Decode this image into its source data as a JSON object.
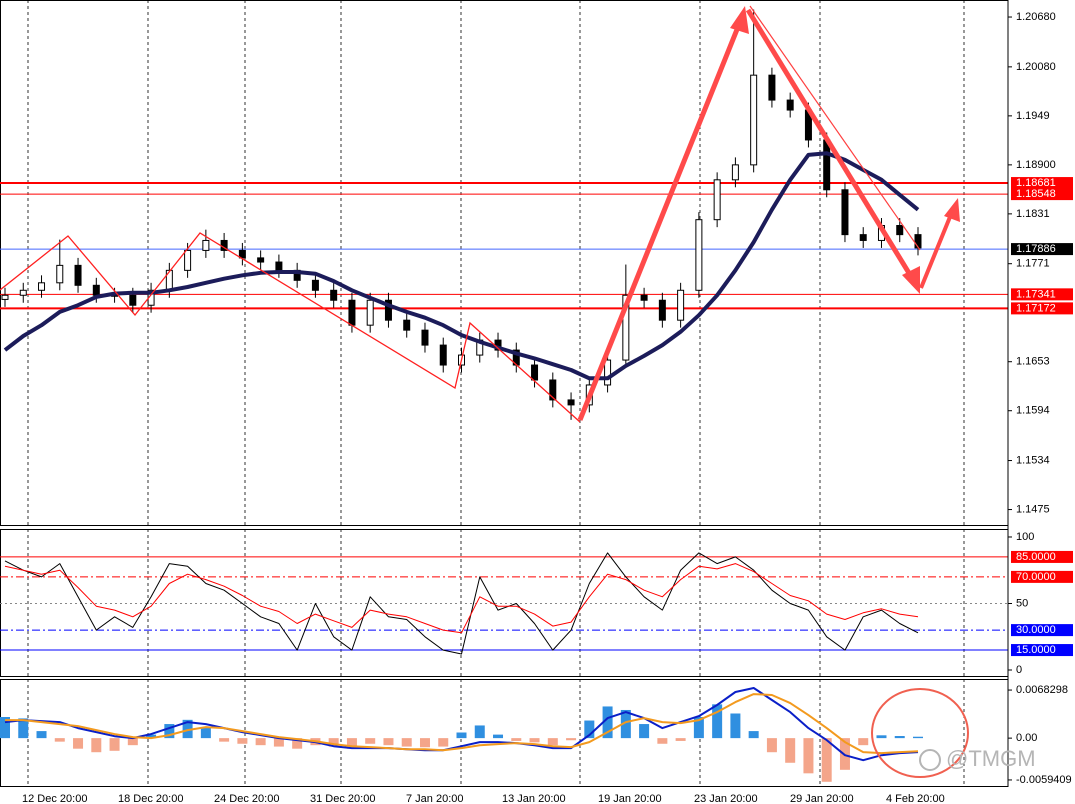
{
  "chart_data": [
    {
      "type": "candlestick",
      "open": [
        1.1728,
        1.1733,
        1.1739,
        1.1748,
        1.1769,
        1.1745,
        1.1733,
        1.1733,
        1.1721,
        1.1739,
        1.1763,
        1.1787,
        1.1799,
        1.1787,
        1.1778,
        1.1773,
        1.1763,
        1.1751,
        1.1739,
        1.1727,
        1.1697,
        1.1727,
        1.1703,
        1.1691,
        1.1673,
        1.1649,
        1.1661,
        1.1679,
        1.1667,
        1.1649,
        1.1631,
        1.1607,
        1.1601,
        1.1625,
        1.1655,
        1.1733,
        1.1727,
        1.1703,
        1.1739,
        1.1824,
        1.1872,
        1.189,
        1.1998,
        1.1968,
        1.1956,
        1.192,
        1.186,
        1.1806,
        1.1799,
        1.1817,
        1.1806
      ],
      "high": [
        1.1742,
        1.1748,
        1.1757,
        1.18,
        1.1778,
        1.1754,
        1.1742,
        1.1742,
        1.1748,
        1.1772,
        1.1796,
        1.1812,
        1.1808,
        1.1796,
        1.1787,
        1.1782,
        1.1772,
        1.176,
        1.1748,
        1.1736,
        1.1736,
        1.1736,
        1.1712,
        1.17,
        1.1682,
        1.167,
        1.1688,
        1.1688,
        1.1676,
        1.1658,
        1.164,
        1.1616,
        1.1634,
        1.1664,
        1.177,
        1.1742,
        1.1736,
        1.1748,
        1.1833,
        1.1881,
        1.1899,
        1.2077,
        1.2007,
        1.1977,
        1.1965,
        1.1929,
        1.1869,
        1.1815,
        1.1826,
        1.1826,
        1.1815
      ],
      "low": [
        1.1719,
        1.1724,
        1.173,
        1.1739,
        1.1736,
        1.1724,
        1.1724,
        1.1712,
        1.1712,
        1.173,
        1.1754,
        1.1778,
        1.1778,
        1.1769,
        1.1764,
        1.1754,
        1.1742,
        1.173,
        1.1718,
        1.1688,
        1.1688,
        1.1694,
        1.1682,
        1.1664,
        1.164,
        1.164,
        1.1652,
        1.1658,
        1.164,
        1.1622,
        1.1598,
        1.1583,
        1.1592,
        1.1616,
        1.1646,
        1.1718,
        1.1694,
        1.1694,
        1.173,
        1.1815,
        1.1863,
        1.1881,
        1.1959,
        1.1947,
        1.1911,
        1.1851,
        1.1797,
        1.179,
        1.179,
        1.1797,
        1.1781
      ],
      "close": [
        1.1733,
        1.1739,
        1.1748,
        1.1769,
        1.1745,
        1.1733,
        1.1733,
        1.1721,
        1.1739,
        1.1763,
        1.1787,
        1.1799,
        1.1787,
        1.1778,
        1.1773,
        1.1763,
        1.1751,
        1.1739,
        1.1727,
        1.1697,
        1.1727,
        1.1703,
        1.1691,
        1.1673,
        1.1649,
        1.1661,
        1.1679,
        1.1667,
        1.1649,
        1.1631,
        1.1607,
        1.1601,
        1.1625,
        1.1655,
        1.1733,
        1.1727,
        1.1703,
        1.1739,
        1.1824,
        1.1872,
        1.189,
        1.1998,
        1.1968,
        1.1956,
        1.192,
        1.186,
        1.1806,
        1.1799,
        1.1817,
        1.1806,
        1.179
      ],
      "ma": {
        "color": "#1c1c5a",
        "values": [
          1.1667,
          1.1684,
          1.1697,
          1.1713,
          1.1721,
          1.1731,
          1.1735,
          1.1736,
          1.1736,
          1.1739,
          1.1743,
          1.1748,
          1.1753,
          1.1757,
          1.176,
          1.1761,
          1.1761,
          1.1759,
          1.175,
          1.1739,
          1.173,
          1.1721,
          1.1713,
          1.1706,
          1.1697,
          1.1685,
          1.1677,
          1.167,
          1.1663,
          1.1657,
          1.165,
          1.1643,
          1.1633,
          1.1633,
          1.1648,
          1.166,
          1.1673,
          1.1689,
          1.1709,
          1.1733,
          1.1763,
          1.1797,
          1.1836,
          1.1872,
          1.1902,
          1.1904,
          1.1896,
          1.1884,
          1.1872,
          1.1854,
          1.1836
        ]
      },
      "ylim": [
        1.14564,
        1.20885
      ],
      "yticks": [
        {
          "value": 1.2068,
          "label": "1.20680"
        },
        {
          "value": 1.2008,
          "label": "1.20080"
        },
        1.1949,
        {
          "value": 1.189,
          "label": "1.18900"
        },
        1.1831,
        1.1771,
        1.1653,
        1.1594,
        1.1534,
        1.1475
      ],
      "hlines": [
        {
          "value": 1.18681,
          "color": "#ff0000",
          "style": "thick",
          "box": "#ff0000"
        },
        {
          "value": 1.18548,
          "color": "#ff0000",
          "style": "thin",
          "box": "#ff0000"
        },
        {
          "value": 1.17886,
          "color": "#4466ff",
          "style": "thin",
          "box": "#000000"
        },
        {
          "value": 1.17341,
          "color": "#ff0000",
          "style": "thin",
          "box": "#ff0000"
        },
        {
          "value": 1.17172,
          "color": "#ff0000",
          "style": "thick",
          "box": "#ff0000"
        }
      ]
    },
    {
      "type": "line",
      "series": [
        {
          "color": "#000000",
          "values": [
            82,
            75,
            70,
            80,
            55,
            30,
            40,
            32,
            55,
            80,
            78,
            65,
            60,
            50,
            40,
            35,
            15,
            50,
            25,
            15,
            55,
            40,
            38,
            25,
            15,
            12,
            70,
            45,
            50,
            35,
            15,
            30,
            65,
            88,
            70,
            55,
            45,
            75,
            88,
            80,
            85,
            75,
            60,
            50,
            45,
            25,
            15,
            40,
            45,
            35,
            28
          ]
        },
        {
          "color": "#ff0000",
          "values": [
            78,
            75,
            72,
            75,
            62,
            48,
            45,
            40,
            48,
            65,
            72,
            68,
            63,
            56,
            48,
            44,
            35,
            42,
            37,
            32,
            45,
            42,
            40,
            35,
            30,
            28,
            55,
            48,
            48,
            42,
            33,
            36,
            55,
            72,
            68,
            60,
            55,
            68,
            78,
            76,
            80,
            74,
            65,
            56,
            52,
            42,
            38,
            43,
            46,
            42,
            40
          ]
        }
      ],
      "ylim": [
        -4.5,
        106
      ],
      "yticks": [
        0,
        50,
        100
      ],
      "levels": [
        {
          "value": 85,
          "label": "85.0000",
          "color": "#ff0000",
          "style": "solid"
        },
        {
          "value": 70,
          "label": "70.0000",
          "color": "#ff0000",
          "style": "dashdot"
        },
        {
          "value": 30,
          "label": "30.0000",
          "color": "#0000ff",
          "style": "dashdot"
        },
        {
          "value": 15,
          "label": "15.0000",
          "color": "#0000ff",
          "style": "solid"
        }
      ]
    },
    {
      "type": "macd",
      "histogram": {
        "colors": [
          "#2f8fe0",
          "#f4a58a"
        ],
        "values": [
          0.003,
          0.0028,
          0.001,
          -0.0005,
          -0.0015,
          -0.002,
          -0.0018,
          -0.001,
          0.0005,
          0.002,
          0.0026,
          0.0015,
          -0.0005,
          -0.0008,
          -0.001,
          -0.0012,
          -0.0015,
          -0.001,
          -0.0012,
          -0.0015,
          -0.0008,
          -0.001,
          -0.0012,
          -0.0013,
          -0.0012,
          0.0008,
          0.0018,
          0.0005,
          -0.0004,
          -0.0006,
          -0.001,
          -0.0003,
          0.0025,
          0.0045,
          0.004,
          0.002,
          -0.0008,
          -0.0004,
          0.003,
          0.0048,
          0.0035,
          0.001,
          -0.002,
          -0.0035,
          -0.005,
          -0.0062,
          -0.0045,
          -0.001,
          0.0004,
          0.0003,
          0.0002
        ]
      },
      "series": [
        {
          "color": "#0a1fc8",
          "values": [
            0.00228,
            0.00256,
            0.00242,
            0.00228,
            0.00142,
            0.00085,
            0.00028,
            0,
            0.00057,
            0.00142,
            0.00228,
            0.00199,
            0.00142,
            0.00085,
            0.00043,
            0,
            -0.00028,
            -0.00057,
            -0.00114,
            -0.00142,
            -0.00142,
            -0.00142,
            -0.00157,
            -0.00171,
            -0.00171,
            -0.00114,
            -0.00057,
            -0.00057,
            -0.00071,
            -0.001,
            -0.00142,
            -0.00142,
            0.00043,
            0.00285,
            0.0037,
            0.00285,
            0.00142,
            0.00228,
            0.00313,
            0.0047,
            0.00655,
            0.00712,
            0.00541,
            0.0037,
            0.00142,
            -0.00028,
            -0.00242,
            -0.00313,
            -0.00242,
            -0.00213,
            -0.00199
          ]
        },
        {
          "color": "#f39a1e",
          "values": [
            0.00256,
            0.00256,
            0.00228,
            0.00199,
            0.00171,
            0.00114,
            0.00057,
            0.00014,
            0,
            0.00043,
            0.00114,
            0.00157,
            0.00142,
            0.001,
            0.00057,
            0.00014,
            -0.00014,
            -0.00043,
            -0.00085,
            -0.00114,
            -0.00128,
            -0.00142,
            -0.00157,
            -0.00157,
            -0.00171,
            -0.00142,
            -0.001,
            -0.00085,
            -0.00071,
            -0.00085,
            -0.00114,
            -0.00128,
            -0.00057,
            0.00085,
            0.00228,
            0.00285,
            0.00228,
            0.00213,
            0.00256,
            0.0037,
            0.00512,
            0.00626,
            0.00612,
            0.00498,
            0.00327,
            0.00142,
            -0.00057,
            -0.00199,
            -0.00213,
            -0.00199,
            -0.00185
          ]
        }
      ],
      "ylim": [
        -0.0068,
        0.0084
      ],
      "yticks": [
        0.0068298,
        {
          "value": 0,
          "label": "0.00"
        },
        -0.0059409
      ],
      "xtick_labels": [
        "12 Dec 20:00",
        "18 Dec 20:00",
        "24 Dec 20:00",
        "31 Dec 20:00",
        "7 Jan 20:00",
        "13 Jan 20:00",
        "19 Jan 20:00",
        "23 Jan 20:00",
        "29 Jan 20:00",
        "4 Feb 20:00"
      ]
    }
  ],
  "watermark": "@TMGM"
}
